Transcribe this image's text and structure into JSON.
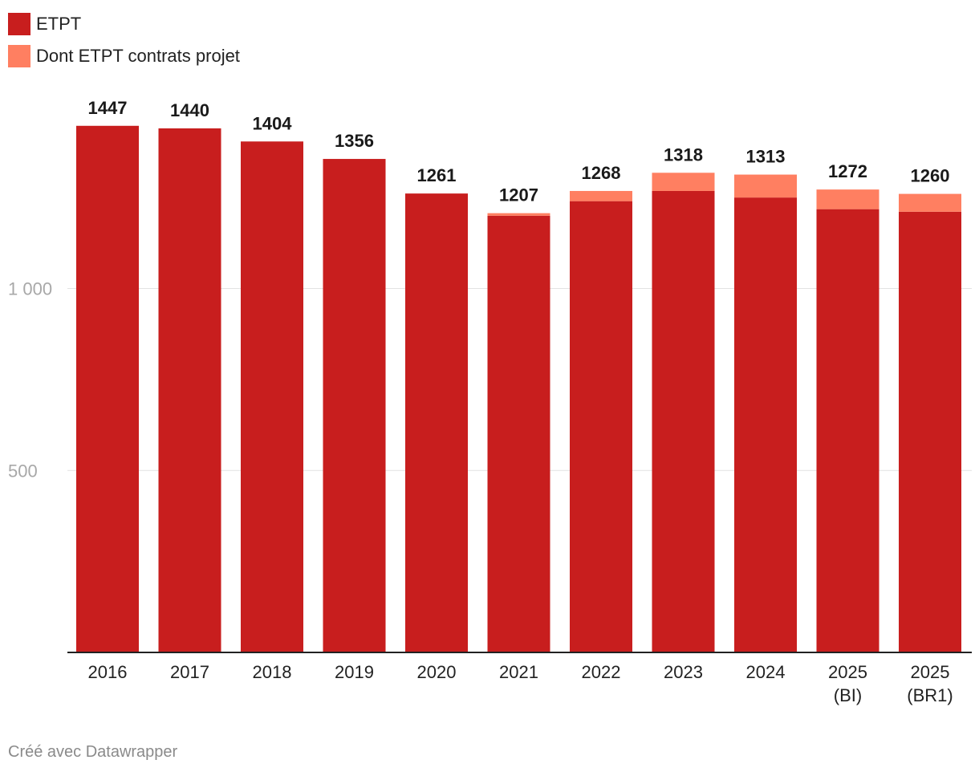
{
  "legend": [
    {
      "label": "ETPT",
      "color": "#c81e1e"
    },
    {
      "label": "Dont ETPT contrats projet",
      "color": "#ff7f61"
    }
  ],
  "credit": "Créé avec Datawrapper",
  "chart_data": {
    "type": "bar",
    "stacked": true,
    "categories": [
      "2016",
      "2017",
      "2018",
      "2019",
      "2020",
      "2021",
      "2022",
      "2023",
      "2024",
      "2025\n(BI)",
      "2025\n(BR1)"
    ],
    "series": [
      {
        "name": "ETPT",
        "color": "#c81e1e",
        "values": [
          1447,
          1440,
          1404,
          1356,
          1261,
          1200,
          1240,
          1268,
          1250,
          1218,
          1211
        ]
      },
      {
        "name": "Dont ETPT contrats projet",
        "color": "#ff7f61",
        "values": [
          0,
          0,
          0,
          0,
          0,
          7,
          28,
          50,
          63,
          54,
          49
        ]
      }
    ],
    "totals": [
      "1447",
      "1440",
      "1404",
      "1356",
      "1261",
      "1207",
      "1268",
      "1318",
      "1313",
      "1272",
      "1260"
    ],
    "yticks": [
      {
        "value": 500,
        "label": "500"
      },
      {
        "value": 1000,
        "label": "1 000"
      }
    ],
    "ylim": [
      0,
      1550
    ],
    "gridlines": true
  }
}
